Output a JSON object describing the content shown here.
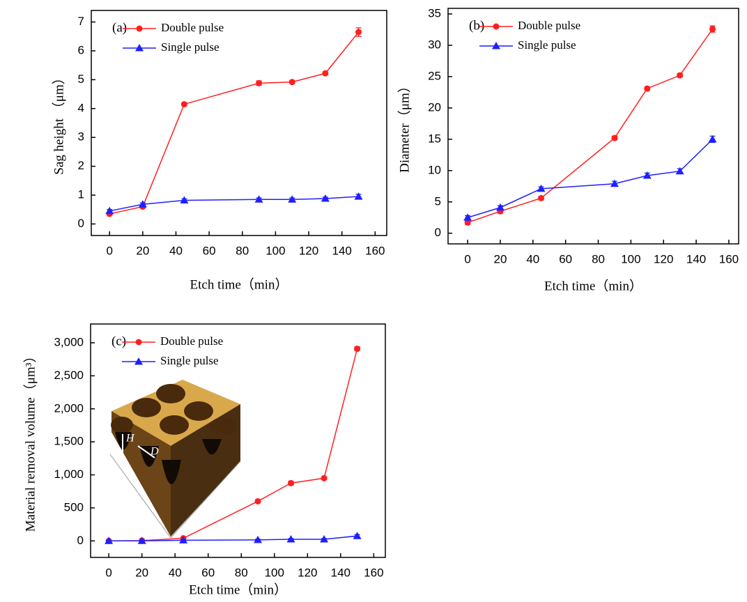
{
  "chart_data": [
    {
      "type": "line",
      "panel_label": "(a)",
      "x_label": "Etch time（min）",
      "y_label": "Sag height （μm）",
      "x": [
        0,
        20,
        45,
        90,
        110,
        130,
        150
      ],
      "series": [
        {
          "name": "Double pulse",
          "color": "#ff1f1f",
          "marker": "circle",
          "values": [
            0.35,
            0.6,
            4.15,
            4.88,
            4.92,
            5.22,
            6.65
          ],
          "errors": [
            0.05,
            0.05,
            0.05,
            0.08,
            0.05,
            0.05,
            0.15
          ]
        },
        {
          "name": "Single pulse",
          "color": "#1f1fff",
          "marker": "triangle",
          "values": [
            0.45,
            0.68,
            0.82,
            0.85,
            0.85,
            0.88,
            0.95
          ],
          "errors": [
            0.05,
            0.05,
            0.05,
            0.05,
            0.05,
            0.05,
            0.08
          ]
        }
      ],
      "xlim": [
        -11,
        167
      ],
      "xticks": [
        0,
        20,
        40,
        60,
        80,
        100,
        120,
        140,
        160
      ],
      "ylim": [
        -0.4,
        7.4
      ],
      "yticks": [
        0,
        1,
        2,
        3,
        4,
        5,
        6,
        7
      ]
    },
    {
      "type": "line",
      "panel_label": "(b)",
      "x_label": "Etch time（min）",
      "y_label": "Diameter（μm）",
      "x": [
        0,
        20,
        45,
        90,
        110,
        130,
        150
      ],
      "series": [
        {
          "name": "Double pulse",
          "color": "#ff1f1f",
          "marker": "circle",
          "values": [
            1.7,
            3.5,
            5.6,
            15.2,
            23.1,
            25.2,
            32.6
          ],
          "errors": [
            0.3,
            0.3,
            0.3,
            0.3,
            0.3,
            0.3,
            0.5
          ]
        },
        {
          "name": "Single pulse",
          "color": "#1f1fff",
          "marker": "triangle",
          "values": [
            2.5,
            4.1,
            7.1,
            7.9,
            9.2,
            9.9,
            15.0
          ],
          "errors": [
            0.3,
            0.3,
            0.3,
            0.4,
            0.4,
            0.4,
            0.5
          ]
        }
      ],
      "xlim": [
        -12,
        166
      ],
      "xticks": [
        0,
        20,
        40,
        60,
        80,
        100,
        120,
        140,
        160
      ],
      "ylim": [
        -1.7,
        35.9
      ],
      "yticks": [
        0,
        5,
        10,
        15,
        20,
        25,
        30,
        35
      ]
    },
    {
      "type": "line",
      "panel_label": "(c)",
      "x_label": "Etch time（min）",
      "y_label": "Material removal volume（μm³）",
      "annotations": [
        "H",
        "D"
      ],
      "x": [
        0,
        20,
        45,
        90,
        110,
        130,
        150
      ],
      "series": [
        {
          "name": "Double pulse",
          "color": "#ff1f1f",
          "marker": "circle",
          "values": [
            0,
            5,
            40,
            600,
            875,
            950,
            2910
          ],
          "errors": [
            10,
            10,
            10,
            20,
            30,
            20,
            30
          ]
        },
        {
          "name": "Single pulse",
          "color": "#1f1fff",
          "marker": "triangle",
          "values": [
            0,
            0,
            10,
            15,
            25,
            25,
            75
          ],
          "errors": [
            10,
            10,
            10,
            10,
            10,
            10,
            20
          ]
        }
      ],
      "xlim": [
        -11,
        167
      ],
      "xticks": [
        0,
        20,
        40,
        60,
        80,
        100,
        120,
        140,
        160
      ],
      "ylim": [
        -250,
        3285
      ],
      "yticks": [
        0,
        500,
        {
          "value": 1000,
          "label": "1,000"
        },
        {
          "value": 1500,
          "label": "1,500"
        },
        {
          "value": 2000,
          "label": "2,000"
        },
        {
          "value": 2500,
          "label": "2,500"
        },
        {
          "value": 3000,
          "label": "3,000"
        }
      ]
    }
  ]
}
